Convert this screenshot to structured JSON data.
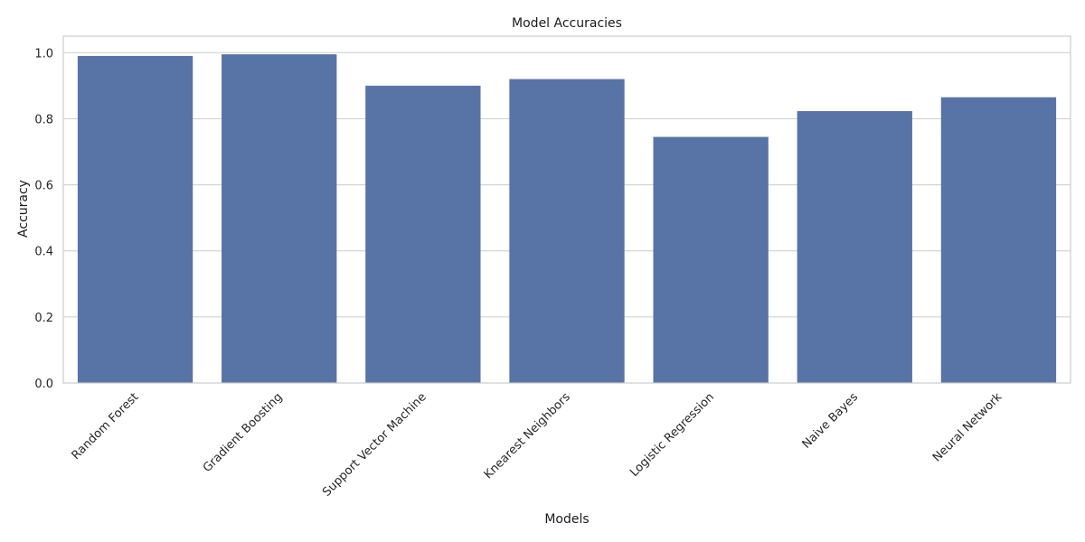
{
  "chart_data": {
    "type": "bar",
    "title": "Model Accuracies",
    "xlabel": "Models",
    "ylabel": "Accuracy",
    "categories": [
      "Random Forest",
      "Gradient Boosting",
      "Support Vector Machine",
      "Knearest Neighbors",
      "Logistic Regression",
      "Naive Bayes",
      "Neural Network"
    ],
    "values": [
      0.99,
      0.995,
      0.9,
      0.92,
      0.745,
      0.823,
      0.865
    ],
    "ylim": [
      0,
      1.05
    ],
    "yticks": [
      0.0,
      0.2,
      0.4,
      0.6,
      0.8,
      1.0
    ],
    "ytick_labels": [
      "0.0",
      "0.2",
      "0.4",
      "0.6",
      "0.8",
      "1.0"
    ],
    "grid": "horizontal",
    "bar_color": "#5874a6",
    "background": "#ffffff"
  }
}
